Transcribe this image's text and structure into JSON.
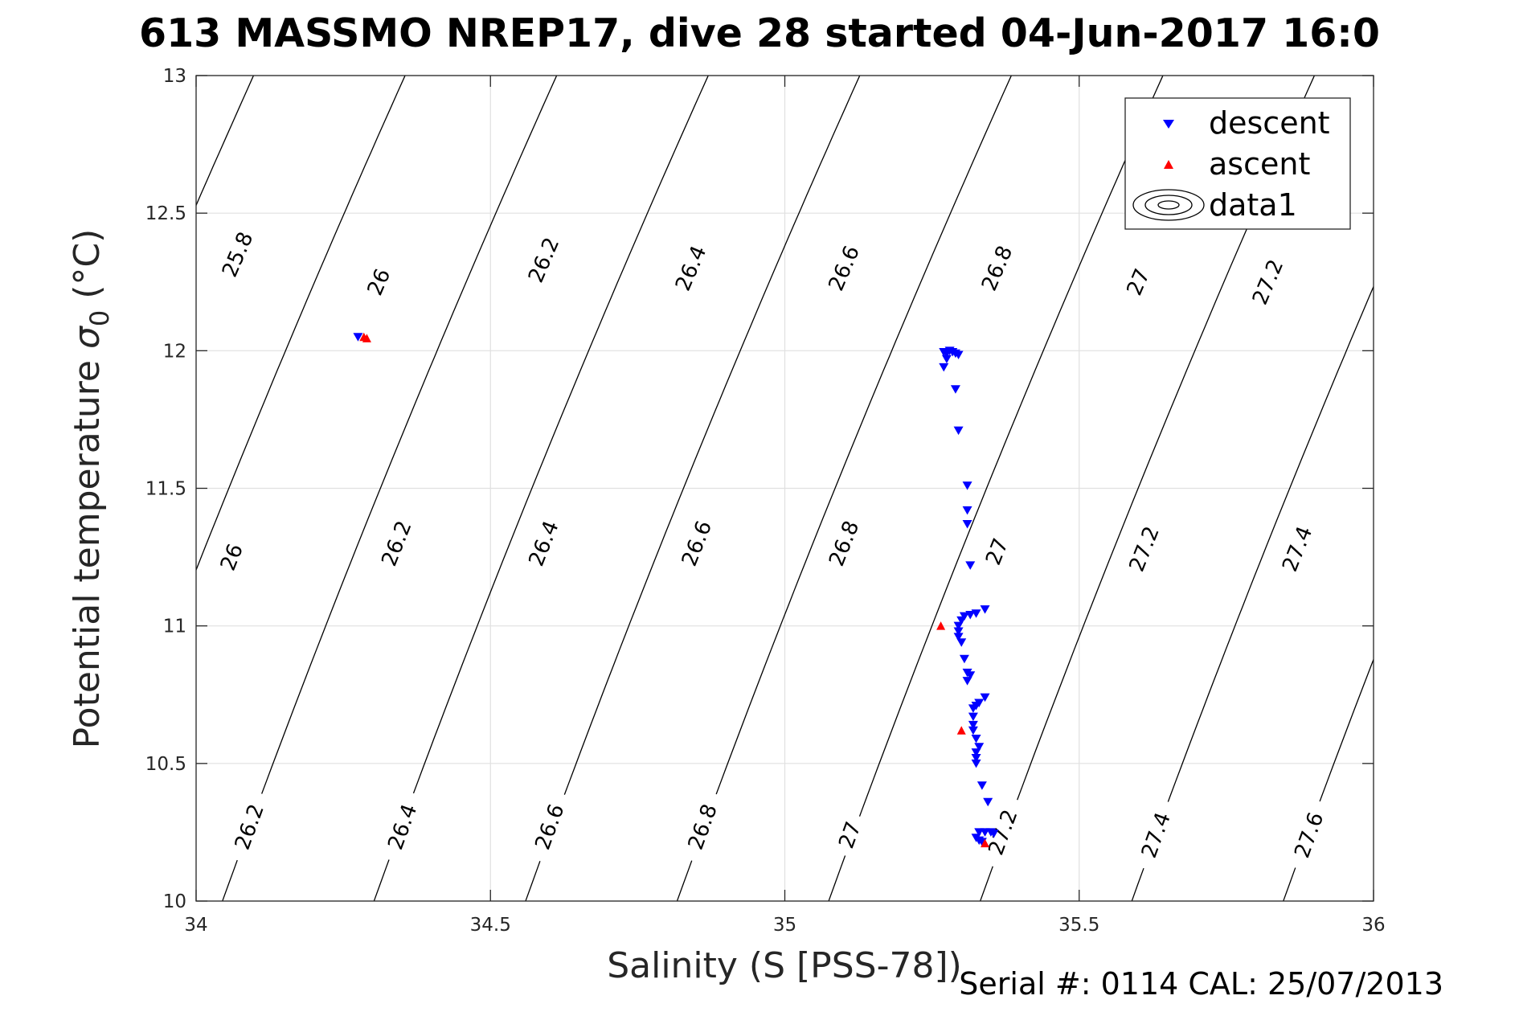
{
  "title": "613 MASSMO NREP17, dive 28 started 04-Jun-2017 16:0",
  "serial_text": "Serial #: 0114  CAL: 25/07/2013",
  "colors": {
    "descent": "#0000ff",
    "ascent": "#ff0000",
    "contour": "#000000",
    "grid": "#e0e0e0",
    "axis": "#262626"
  },
  "chart_data": {
    "type": "scatter",
    "xlabel": "Salinity (S [PSS-78])",
    "ylabel": "Potential temperature σ₀ (°C)",
    "ylabel_main": "Potential temperature",
    "ylabel_sigma": "σ",
    "ylabel_sub": "0",
    "ylabel_unit": "(°C)",
    "xlim": [
      34,
      36
    ],
    "ylim": [
      10,
      13
    ],
    "grid": true,
    "xticks": [
      34,
      34.5,
      35,
      35.5,
      36
    ],
    "xtick_labels": [
      "34",
      "34.5",
      "35",
      "35.5",
      "36"
    ],
    "yticks": [
      10,
      10.5,
      11,
      11.5,
      12,
      12.5,
      13
    ],
    "ytick_labels": [
      "10",
      "10.5",
      "11",
      "11.5",
      "12",
      "12.5",
      "13"
    ],
    "legend": {
      "position": "top-right",
      "entries": [
        "descent",
        "ascent",
        "data1"
      ]
    },
    "series": [
      {
        "name": "descent",
        "marker": "triangle-down",
        "points": [
          [
            34.275,
            12.05
          ],
          [
            35.27,
            11.995
          ],
          [
            35.275,
            11.99
          ],
          [
            35.28,
            12.0
          ],
          [
            35.285,
            11.995
          ],
          [
            35.29,
            11.99
          ],
          [
            35.295,
            11.985
          ],
          [
            35.275,
            11.97
          ],
          [
            35.27,
            11.94
          ],
          [
            35.29,
            11.86
          ],
          [
            35.295,
            11.71
          ],
          [
            35.31,
            11.51
          ],
          [
            35.31,
            11.42
          ],
          [
            35.31,
            11.37
          ],
          [
            35.315,
            11.22
          ],
          [
            35.34,
            11.06
          ],
          [
            35.325,
            11.045
          ],
          [
            35.315,
            11.04
          ],
          [
            35.305,
            11.035
          ],
          [
            35.3,
            11.02
          ],
          [
            35.295,
            11.0
          ],
          [
            35.295,
            10.98
          ],
          [
            35.295,
            10.96
          ],
          [
            35.3,
            10.94
          ],
          [
            35.305,
            10.88
          ],
          [
            35.31,
            10.83
          ],
          [
            35.315,
            10.82
          ],
          [
            35.31,
            10.8
          ],
          [
            35.34,
            10.74
          ],
          [
            35.33,
            10.72
          ],
          [
            35.325,
            10.71
          ],
          [
            35.32,
            10.7
          ],
          [
            35.32,
            10.67
          ],
          [
            35.32,
            10.64
          ],
          [
            35.32,
            10.62
          ],
          [
            35.325,
            10.59
          ],
          [
            35.33,
            10.56
          ],
          [
            35.325,
            10.54
          ],
          [
            35.325,
            10.52
          ],
          [
            35.325,
            10.5
          ],
          [
            35.335,
            10.42
          ],
          [
            35.345,
            10.36
          ],
          [
            35.33,
            10.25
          ],
          [
            35.34,
            10.25
          ],
          [
            35.35,
            10.25
          ],
          [
            35.355,
            10.245
          ],
          [
            35.325,
            10.23
          ],
          [
            35.33,
            10.22
          ],
          [
            35.335,
            10.215
          ]
        ]
      },
      {
        "name": "ascent",
        "marker": "triangle-up",
        "points": [
          [
            34.285,
            12.05
          ],
          [
            34.29,
            12.045
          ],
          [
            35.265,
            11.0
          ],
          [
            35.3,
            10.62
          ],
          [
            35.34,
            10.21
          ]
        ]
      }
    ],
    "isopycnals": [
      {
        "label": "25.8",
        "sigma": 25.8
      },
      {
        "label": "26",
        "sigma": 26.0
      },
      {
        "label": "26.2",
        "sigma": 26.2
      },
      {
        "label": "26.4",
        "sigma": 26.4
      },
      {
        "label": "26.6",
        "sigma": 26.6
      },
      {
        "label": "26.8",
        "sigma": 26.8
      },
      {
        "label": "27",
        "sigma": 27.0
      },
      {
        "label": "27.2",
        "sigma": 27.2
      },
      {
        "label": "27.4",
        "sigma": 27.4
      },
      {
        "label": "27.6",
        "sigma": 27.6
      }
    ],
    "isopycnal_labels": [
      {
        "text": "25.8",
        "s": 34.07,
        "t": 12.35
      },
      {
        "text": "26",
        "s": 34.31,
        "t": 12.25
      },
      {
        "text": "26.2",
        "s": 34.59,
        "t": 12.33
      },
      {
        "text": "26.4",
        "s": 34.84,
        "t": 12.3
      },
      {
        "text": "26.6",
        "s": 35.1,
        "t": 12.3
      },
      {
        "text": "26.8",
        "s": 35.36,
        "t": 12.3
      },
      {
        "text": "27",
        "s": 35.6,
        "t": 12.25
      },
      {
        "text": "27.2",
        "s": 35.82,
        "t": 12.25
      },
      {
        "text": "26",
        "s": 34.06,
        "t": 11.25
      },
      {
        "text": "26.2",
        "s": 34.34,
        "t": 11.3
      },
      {
        "text": "26.4",
        "s": 34.59,
        "t": 11.3
      },
      {
        "text": "26.6",
        "s": 34.85,
        "t": 11.3
      },
      {
        "text": "26.8",
        "s": 35.1,
        "t": 11.3
      },
      {
        "text": "27",
        "s": 35.36,
        "t": 11.27
      },
      {
        "text": "27.2",
        "s": 35.61,
        "t": 11.28
      },
      {
        "text": "27.4",
        "s": 35.87,
        "t": 11.28
      },
      {
        "text": "26.2",
        "s": 34.09,
        "t": 10.27
      },
      {
        "text": "26.4",
        "s": 34.35,
        "t": 10.27
      },
      {
        "text": "26.6",
        "s": 34.6,
        "t": 10.27
      },
      {
        "text": "26.8",
        "s": 34.86,
        "t": 10.27
      },
      {
        "text": "27",
        "s": 35.11,
        "t": 10.24
      },
      {
        "text": "27.2",
        "s": 35.37,
        "t": 10.25
      },
      {
        "text": "27.4",
        "s": 35.63,
        "t": 10.24
      },
      {
        "text": "27.6",
        "s": 35.89,
        "t": 10.24
      }
    ]
  }
}
